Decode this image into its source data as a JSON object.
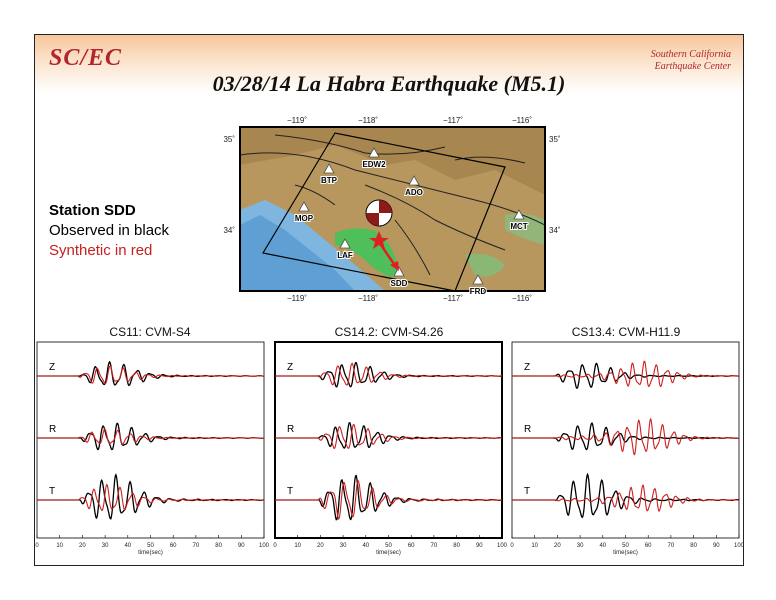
{
  "header": {
    "logo_text": "SC/EC",
    "org_line1": "Southern California",
    "org_line2": "Earthquake Center",
    "title": "03/28/14 La Habra Earthquake (M5.1)"
  },
  "legend": {
    "station": "Station SDD",
    "observed": "Observed in black",
    "synthetic": "Synthetic in red"
  },
  "colors": {
    "observed": "#000000",
    "synthetic": "#cc1f1f",
    "logo": "#b0262c",
    "ocean": "#7fb6e0",
    "land": "#b7975e",
    "basin": "#4fbf5c"
  },
  "map": {
    "lon_ticks": [
      "−119˚",
      "−118˚",
      "−117˚",
      "−116˚"
    ],
    "lat_ticks": [
      "35˚",
      "34˚"
    ],
    "stations": [
      "EDW2",
      "BTP",
      "ADO",
      "MOP",
      "MCT",
      "LAF",
      "SDD",
      "FRD"
    ],
    "highlight_station": "SDD"
  },
  "chart_data": [
    {
      "type": "line",
      "title": "CS11: CVM-S4",
      "xlabel": "time(sec)",
      "xlim": [
        0,
        100
      ],
      "xticks": [
        0,
        10,
        20,
        30,
        40,
        50,
        60,
        70,
        80,
        90,
        100
      ],
      "components": [
        "Z",
        "R",
        "T"
      ],
      "highlighted": false,
      "series": [
        {
          "name": "Observed in black",
          "onset": 19,
          "peak": 33,
          "amp": [
            0.55,
            0.6,
            1.0
          ],
          "period": 6.0
        },
        {
          "name": "Synthetic in red",
          "onset": 18,
          "peak": 31,
          "amp": [
            0.4,
            0.35,
            0.6
          ],
          "period": 5.5
        }
      ]
    },
    {
      "type": "line",
      "title": "CS14.2: CVM-S4.26",
      "xlabel": "time(sec)",
      "xlim": [
        0,
        100
      ],
      "xticks": [
        0,
        10,
        20,
        30,
        40,
        50,
        60,
        70,
        80,
        90,
        100
      ],
      "components": [
        "Z",
        "R",
        "T"
      ],
      "highlighted": true,
      "series": [
        {
          "name": "Observed in black",
          "onset": 19,
          "peak": 33,
          "amp": [
            0.55,
            0.6,
            1.0
          ],
          "period": 6.0
        },
        {
          "name": "Synthetic in red",
          "onset": 19,
          "peak": 32,
          "amp": [
            0.5,
            0.55,
            0.85
          ],
          "period": 6.0
        }
      ]
    },
    {
      "type": "line",
      "title": "CS13.4: CVM-H11.9",
      "xlabel": "time(sec)",
      "xlim": [
        0,
        100
      ],
      "xticks": [
        0,
        10,
        20,
        30,
        40,
        50,
        60,
        70,
        80,
        90,
        100
      ],
      "components": [
        "Z",
        "R",
        "T"
      ],
      "highlighted": false,
      "series": [
        {
          "name": "Observed in black",
          "onset": 19,
          "peak": 33,
          "amp": [
            0.55,
            0.6,
            1.0
          ],
          "period": 6.0
        },
        {
          "name": "Synthetic in red",
          "onset": 18,
          "peak": 58,
          "amp": [
            0.6,
            0.8,
            0.6
          ],
          "period": 5.0
        }
      ]
    }
  ]
}
